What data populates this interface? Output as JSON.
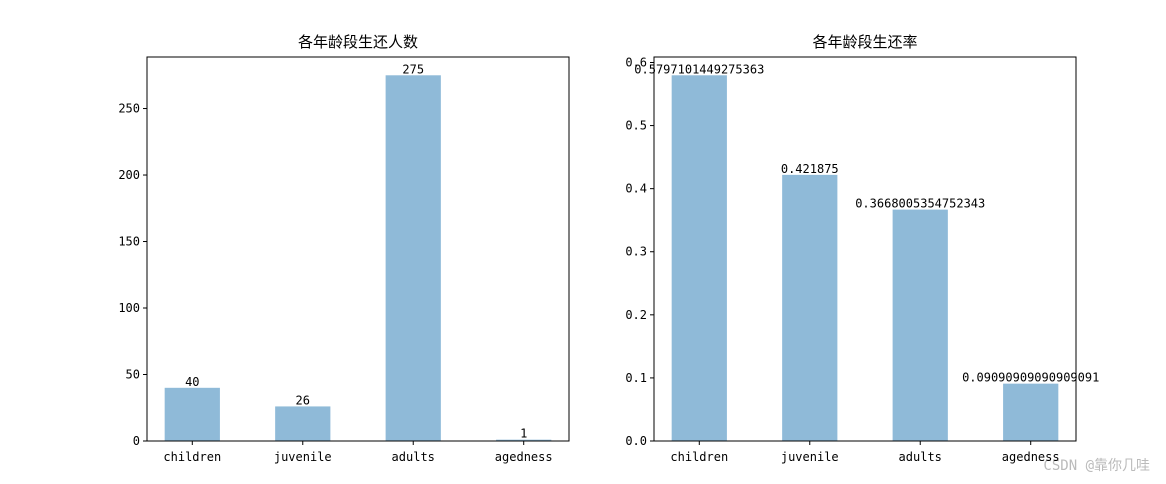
{
  "chart_data": [
    {
      "type": "bar",
      "title": "各年龄段生还人数",
      "categories": [
        "children",
        "juvenile",
        "adults",
        "agedness"
      ],
      "values": [
        40,
        26,
        275,
        1
      ],
      "color": "#8fbad8",
      "ylim": [
        0,
        288.75
      ],
      "yticks": [
        0,
        50,
        100,
        150,
        200,
        250
      ]
    },
    {
      "type": "bar",
      "title": "各年龄段生还率",
      "categories": [
        "children",
        "juvenile",
        "adults",
        "agedness"
      ],
      "values": [
        0.5797101449275363,
        0.421875,
        0.3668005354752343,
        0.09090909090909091
      ],
      "color": "#8fbad8",
      "ylim": [
        0,
        0.6087
      ],
      "yticks": [
        {
          "value": 0,
          "label": "0.0"
        },
        0.1,
        0.2,
        0.3,
        0.4,
        0.5,
        0.6
      ]
    }
  ],
  "watermark": "CSDN @靠你几哇"
}
